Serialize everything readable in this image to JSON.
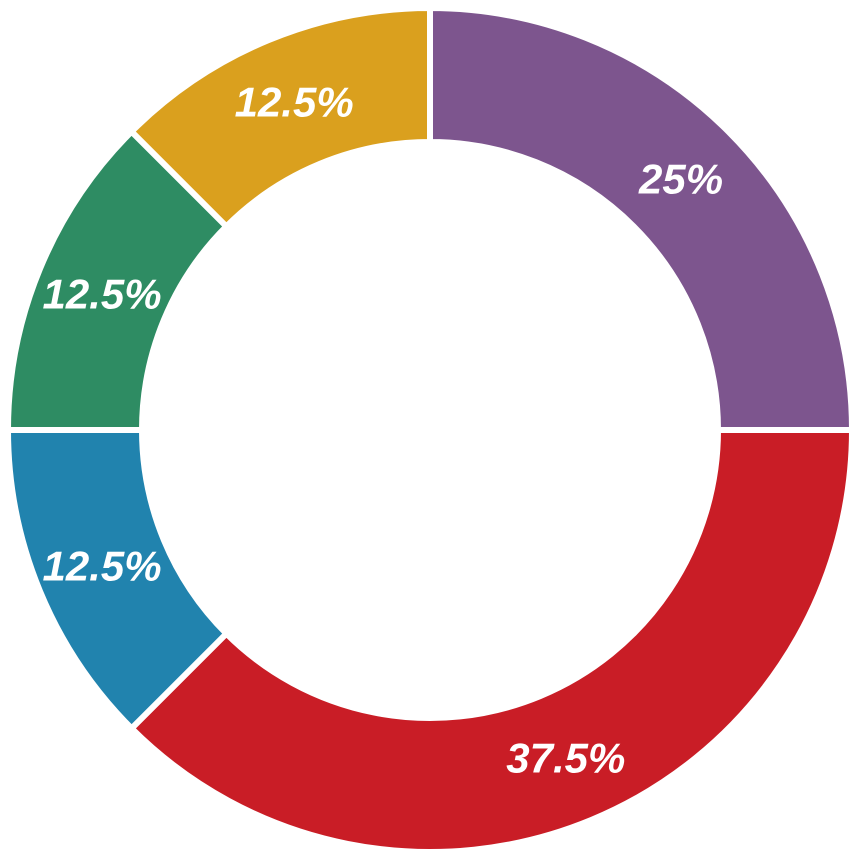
{
  "chart_data": {
    "type": "pie",
    "variant": "donut",
    "title": "",
    "slices": [
      {
        "label": "25%",
        "value": 25,
        "color": "#7D558E"
      },
      {
        "label": "37.5%",
        "value": 37.5,
        "color": "#C91D26"
      },
      {
        "label": "12.5%",
        "value": 12.5,
        "color": "#2183AE"
      },
      {
        "label": "12.5%",
        "value": 12.5,
        "color": "#2E8C63"
      },
      {
        "label": "12.5%",
        "value": 12.5,
        "color": "#DAA01E"
      }
    ],
    "legend": "none",
    "start_angle": "12 o'clock",
    "direction": "clockwise"
  }
}
